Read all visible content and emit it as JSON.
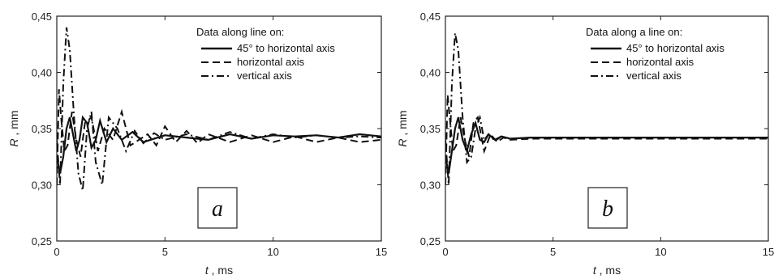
{
  "chart_data": [
    {
      "type": "line",
      "panel_label": "a",
      "xlabel": "t , ms",
      "ylabel": "R , mm",
      "xlim": [
        0,
        15
      ],
      "ylim": [
        0.25,
        0.45
      ],
      "x_ticks": [
        "0",
        "5",
        "10",
        "15"
      ],
      "y_ticks": [
        "0,25",
        "0,30",
        "0,35",
        "0,40",
        "0,45"
      ],
      "legend_title": "Data along line on:",
      "legend_position": "top-right",
      "grid": false,
      "series": [
        {
          "name": "45° to horizontal axis",
          "style": "solid",
          "x": [
            0,
            0.15,
            0.3,
            0.45,
            0.6,
            0.75,
            0.9,
            1.05,
            1.2,
            1.4,
            1.6,
            1.8,
            2.0,
            2.3,
            2.6,
            3.0,
            3.5,
            4.0,
            5.0,
            6.0,
            7.0,
            8.0,
            9.0,
            10.0,
            11.0,
            12.0,
            13.0,
            14.0,
            15.0
          ],
          "y": [
            0.325,
            0.31,
            0.325,
            0.35,
            0.36,
            0.345,
            0.33,
            0.34,
            0.36,
            0.355,
            0.333,
            0.34,
            0.357,
            0.338,
            0.35,
            0.34,
            0.347,
            0.338,
            0.344,
            0.342,
            0.34,
            0.345,
            0.341,
            0.344,
            0.343,
            0.344,
            0.342,
            0.345,
            0.343
          ]
        },
        {
          "name": "horizontal axis",
          "style": "dashed",
          "x": [
            0,
            0.1,
            0.2,
            0.35,
            0.5,
            0.7,
            0.9,
            1.1,
            1.3,
            1.6,
            1.9,
            2.2,
            2.6,
            3.0,
            3.4,
            3.8,
            4.2,
            4.6,
            5.0,
            5.5,
            6.0,
            6.5,
            7.0,
            8.0,
            9.0,
            10.0,
            11.0,
            12.0,
            13.0,
            14.0,
            15.0
          ],
          "y": [
            0.3,
            0.385,
            0.36,
            0.33,
            0.335,
            0.365,
            0.34,
            0.325,
            0.355,
            0.36,
            0.33,
            0.35,
            0.34,
            0.365,
            0.335,
            0.34,
            0.345,
            0.335,
            0.352,
            0.338,
            0.348,
            0.337,
            0.345,
            0.338,
            0.344,
            0.338,
            0.343,
            0.338,
            0.342,
            0.338,
            0.34
          ]
        },
        {
          "name": "vertical axis",
          "style": "dashdot",
          "x": [
            0,
            0.15,
            0.3,
            0.45,
            0.6,
            0.8,
            1.0,
            1.2,
            1.4,
            1.6,
            1.8,
            2.1,
            2.4,
            2.8,
            3.2,
            3.6,
            4.0,
            4.5,
            5.0,
            6.0,
            7.0,
            8.0,
            9.0,
            10.0,
            11.0,
            12.0,
            13.0,
            14.0,
            15.0
          ],
          "y": [
            0.34,
            0.3,
            0.39,
            0.44,
            0.42,
            0.36,
            0.31,
            0.295,
            0.35,
            0.365,
            0.32,
            0.3,
            0.36,
            0.35,
            0.33,
            0.348,
            0.337,
            0.346,
            0.34,
            0.345,
            0.34,
            0.347,
            0.341,
            0.345,
            0.342,
            0.344,
            0.342,
            0.343,
            0.342
          ]
        }
      ]
    },
    {
      "type": "line",
      "panel_label": "b",
      "xlabel": "t , ms",
      "ylabel": "R , mm",
      "xlim": [
        0,
        15
      ],
      "ylim": [
        0.25,
        0.45
      ],
      "x_ticks": [
        "0",
        "5",
        "10",
        "15"
      ],
      "y_ticks": [
        "0,25",
        "0,30",
        "0,35",
        "0,40",
        "0,45"
      ],
      "legend_title": "Data along a line on:",
      "legend_position": "top-right",
      "grid": false,
      "series": [
        {
          "name": "45° to horizontal axis",
          "style": "solid",
          "x": [
            0,
            0.15,
            0.3,
            0.45,
            0.6,
            0.8,
            1.0,
            1.2,
            1.4,
            1.6,
            1.8,
            2.0,
            2.3,
            2.6,
            3.0,
            4.0,
            5.0,
            7.0,
            10.0,
            12.0,
            15.0
          ],
          "y": [
            0.325,
            0.31,
            0.33,
            0.35,
            0.36,
            0.34,
            0.33,
            0.345,
            0.355,
            0.34,
            0.338,
            0.345,
            0.34,
            0.343,
            0.341,
            0.342,
            0.342,
            0.342,
            0.342,
            0.342,
            0.342
          ]
        },
        {
          "name": "horizontal axis",
          "style": "dashed",
          "x": [
            0,
            0.1,
            0.2,
            0.35,
            0.5,
            0.7,
            0.9,
            1.1,
            1.3,
            1.5,
            1.8,
            2.1,
            2.4,
            2.7,
            3.0,
            4.0,
            6.0,
            8.0,
            10.0,
            12.0,
            15.0
          ],
          "y": [
            0.3,
            0.38,
            0.36,
            0.33,
            0.335,
            0.36,
            0.34,
            0.325,
            0.355,
            0.36,
            0.33,
            0.345,
            0.338,
            0.342,
            0.34,
            0.341,
            0.341,
            0.341,
            0.341,
            0.341,
            0.341
          ]
        },
        {
          "name": "vertical axis",
          "style": "dashdot",
          "x": [
            0,
            0.15,
            0.3,
            0.45,
            0.6,
            0.8,
            1.0,
            1.2,
            1.4,
            1.6,
            1.8,
            2.0,
            2.3,
            2.6,
            3.0,
            4.0,
            6.0,
            8.0,
            10.0,
            12.0,
            15.0
          ],
          "y": [
            0.34,
            0.3,
            0.39,
            0.435,
            0.42,
            0.36,
            0.32,
            0.325,
            0.35,
            0.36,
            0.34,
            0.345,
            0.339,
            0.343,
            0.341,
            0.342,
            0.342,
            0.342,
            0.342,
            0.342,
            0.342
          ]
        }
      ]
    }
  ]
}
